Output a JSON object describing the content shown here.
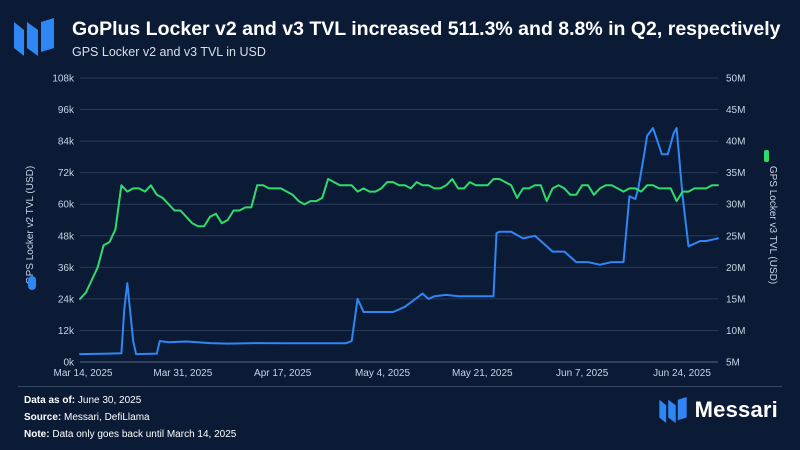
{
  "header": {
    "title": "GoPlus Locker v2 and v3 TVL increased 511.3% and 8.8% in Q2, respectively",
    "subtitle": "GPS Locker v2 and v3 TVL in USD"
  },
  "footer": {
    "data_as_of_label": "Data as of:",
    "data_as_of_value": "June 30, 2025",
    "source_label": "Source:",
    "source_value": "Messari, DefiLlama",
    "note_label": "Note:",
    "note_value": "Data only goes back until March 14, 2025"
  },
  "brand": {
    "name": "Messari"
  },
  "colors": {
    "v2": "#2f86f5",
    "v3": "#2fdc6a",
    "background": "#0b1b36",
    "grid": "#2a3a58"
  },
  "chart_data": {
    "type": "line",
    "title": "GoPlus Locker v2 and v3 TVL increased 511.3% and 8.8% in Q2, respectively",
    "x_ticks": [
      "Mar 14, 2025",
      "Mar 31, 2025",
      "Apr 17, 2025",
      "May 4, 2025",
      "May 21, 2025",
      "Jun 7, 2025",
      "Jun 24, 2025"
    ],
    "x_range_days": [
      0,
      108
    ],
    "y_left": {
      "label": "GPS Locker v2 TVL (USD)",
      "ticks": [
        "0k",
        "12k",
        "24k",
        "36k",
        "48k",
        "60k",
        "72k",
        "84k",
        "96k",
        "108k"
      ],
      "range": [
        0,
        108000
      ]
    },
    "y_right": {
      "label": "GPS Locker v3 TVL (USD)",
      "ticks": [
        "5M",
        "10M",
        "15M",
        "20M",
        "25M",
        "30M",
        "35M",
        "40M",
        "45M",
        "50M"
      ],
      "range": [
        5000000,
        50000000
      ]
    },
    "series": [
      {
        "name": "GPS Locker v2 TVL (USD)",
        "axis": "left",
        "x": [
          0,
          5,
          7,
          7.5,
          8,
          9,
          9.5,
          13,
          13.5,
          15,
          18,
          22,
          25,
          30,
          35,
          40,
          45,
          46,
          47,
          48,
          50,
          53,
          55,
          58,
          59,
          60,
          62,
          64,
          66,
          68,
          70,
          70.5,
          71,
          73,
          75,
          77,
          79,
          80,
          82,
          84,
          86,
          88,
          89,
          90,
          92,
          93,
          94,
          94.5,
          95.5,
          96,
          97,
          98.5,
          99.5,
          100.5,
          101,
          102,
          103,
          104,
          105,
          106,
          107,
          108
        ],
        "y": [
          3000,
          3200,
          3300,
          20000,
          30000,
          8000,
          3000,
          3200,
          8000,
          7500,
          7800,
          7200,
          7000,
          7200,
          7100,
          7100,
          7100,
          8000,
          24000,
          19000,
          19000,
          19000,
          21000,
          26000,
          24000,
          25000,
          25500,
          25000,
          25000,
          25000,
          25000,
          49000,
          49500,
          49500,
          47000,
          48000,
          44000,
          42000,
          42000,
          38000,
          38000,
          37000,
          37500,
          38000,
          38000,
          63000,
          62000,
          66000,
          79000,
          86000,
          89000,
          79000,
          79000,
          87000,
          89000,
          63000,
          44000,
          45000,
          46000,
          46000,
          46500,
          47000
        ]
      },
      {
        "name": "GPS Locker v3 TVL (USD)",
        "axis": "right",
        "x": [
          0,
          1,
          2,
          3,
          4,
          5,
          6,
          7,
          8,
          9,
          10,
          11,
          12,
          13,
          14,
          15,
          16,
          17,
          18,
          19,
          20,
          21,
          22,
          23,
          24,
          25,
          26,
          27,
          28,
          29,
          30,
          31,
          32,
          33,
          34,
          35,
          36,
          37,
          38,
          39,
          40,
          41,
          42,
          43,
          44,
          45,
          46,
          47,
          48,
          49,
          50,
          51,
          52,
          53,
          54,
          55,
          56,
          57,
          58,
          59,
          60,
          61,
          62,
          63,
          64,
          65,
          66,
          67,
          68,
          69,
          70,
          71,
          72,
          73,
          74,
          75,
          76,
          77,
          78,
          79,
          80,
          81,
          82,
          83,
          84,
          85,
          86,
          87,
          88,
          89,
          90,
          91,
          92,
          93,
          94,
          95,
          96,
          97,
          98,
          99,
          100,
          101,
          102,
          103,
          104,
          105,
          106,
          107,
          108
        ],
        "y": [
          15000000,
          16000000,
          18000000,
          20000000,
          23500000,
          24000000,
          26000000,
          33000000,
          32000000,
          32500000,
          32500000,
          32000000,
          33000000,
          31500000,
          31000000,
          30000000,
          29000000,
          29000000,
          28000000,
          27000000,
          26500000,
          26500000,
          28000000,
          28500000,
          27000000,
          27500000,
          29000000,
          29000000,
          29500000,
          29500000,
          33000000,
          33000000,
          32500000,
          32500000,
          32500000,
          32000000,
          31500000,
          30500000,
          30000000,
          30500000,
          30500000,
          31000000,
          34000000,
          33500000,
          33000000,
          33000000,
          33000000,
          32000000,
          32500000,
          32000000,
          32000000,
          32500000,
          33500000,
          33500000,
          33000000,
          33000000,
          32500000,
          33500000,
          33000000,
          33000000,
          32500000,
          32500000,
          33000000,
          34000000,
          32500000,
          32500000,
          33500000,
          33000000,
          33000000,
          33000000,
          34000000,
          34000000,
          33500000,
          33000000,
          31000000,
          32500000,
          32500000,
          33000000,
          33000000,
          30500000,
          32500000,
          33000000,
          32500000,
          31500000,
          31500000,
          33000000,
          33000000,
          31500000,
          32500000,
          33000000,
          33000000,
          32500000,
          32000000,
          32500000,
          32500000,
          32000000,
          33000000,
          33000000,
          32500000,
          32500000,
          32500000,
          30500000,
          32000000,
          32000000,
          32500000,
          32500000,
          32500000,
          33000000,
          33000000
        ]
      }
    ]
  }
}
